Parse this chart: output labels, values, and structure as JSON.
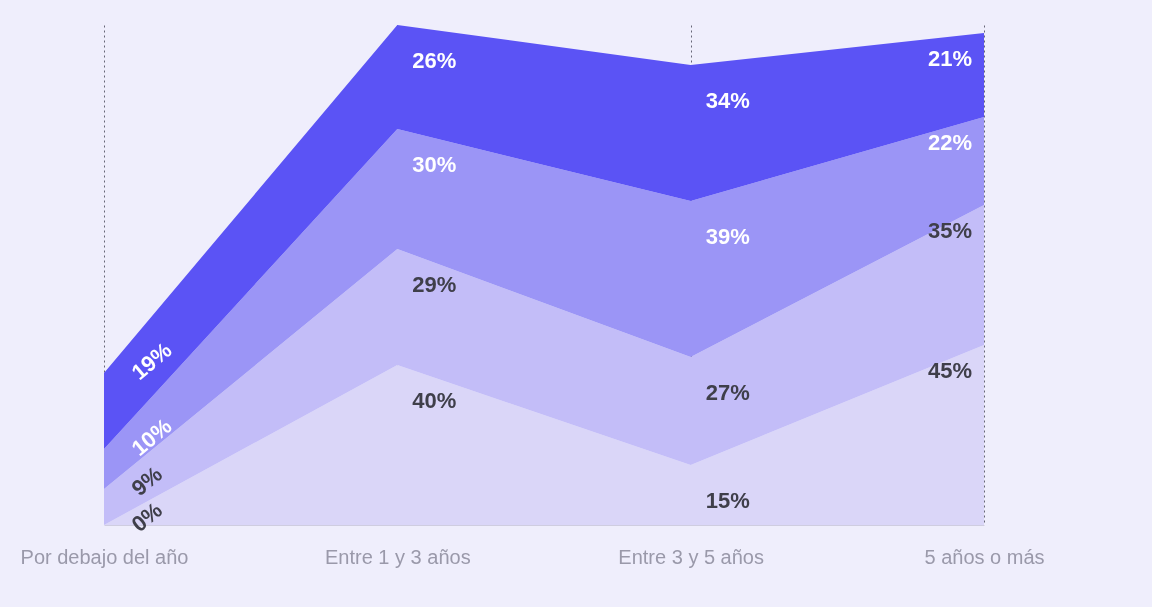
{
  "chart_data": {
    "type": "area",
    "stacked": true,
    "categories": [
      "Por debajo del año",
      "Entre 1 y 3 años",
      "Entre 3 y 5 años",
      "5 años o más"
    ],
    "series": [
      {
        "color": "#dad6f8",
        "values": [
          0,
          40,
          15,
          45
        ],
        "value_labels": [
          "0%",
          "40%",
          "15%",
          "45%"
        ]
      },
      {
        "color": "#c3bdf8",
        "values": [
          9,
          29,
          27,
          35
        ],
        "value_labels": [
          "9%",
          "29%",
          "27%",
          "35%"
        ]
      },
      {
        "color": "#9b95f6",
        "values": [
          10,
          30,
          39,
          22
        ],
        "value_labels": [
          "10%",
          "30%",
          "39%",
          "22%"
        ]
      },
      {
        "color": "#5b53f5",
        "values": [
          19,
          26,
          34,
          21
        ],
        "value_labels": [
          "19%",
          "26%",
          "34%",
          "21%"
        ]
      }
    ],
    "grid": "x",
    "legend": false
  }
}
